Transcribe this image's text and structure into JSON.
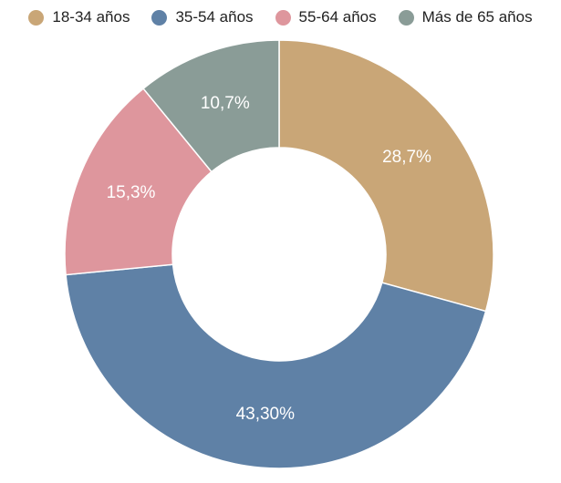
{
  "chart_data": {
    "type": "pie",
    "variant": "donut",
    "legend_position": "top",
    "categories": [
      "18-34 años",
      "35-54 años",
      "55-64 años",
      "Más de 65 años"
    ],
    "values": [
      28.7,
      43.3,
      15.3,
      10.7
    ],
    "data_labels": [
      "28,7%",
      "43,30%",
      "15,3%",
      "10,7%"
    ],
    "colors": [
      "#C9A677",
      "#5F81A6",
      "#DE969D",
      "#8A9C97"
    ]
  }
}
